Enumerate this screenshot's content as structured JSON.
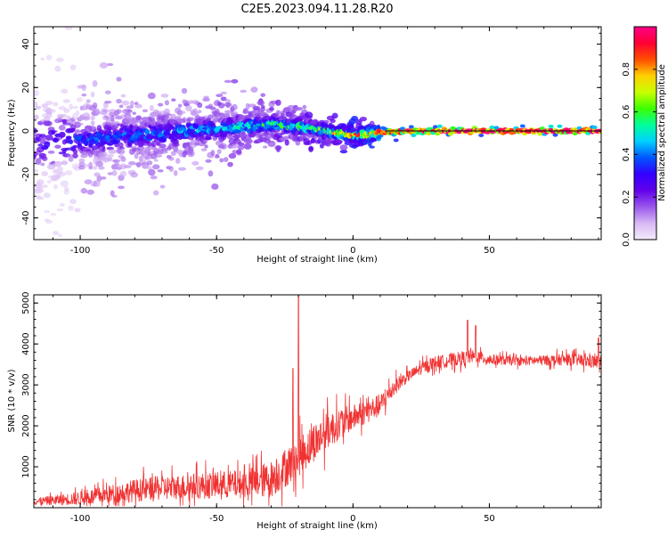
{
  "title": "C2E5.2023.094.11.28.R20",
  "chart_data": [
    {
      "type": "heatmap",
      "xlabel": "Height of straight line (km)",
      "ylabel": "Frequency (Hz)",
      "xlim": [
        -117,
        91
      ],
      "ylim": [
        -50,
        48
      ],
      "x_ticks": [
        -100,
        -50,
        0,
        50
      ],
      "y_ticks": [
        -40,
        -20,
        0,
        20,
        40
      ],
      "colorbar": {
        "label": "Normalized spectral amplitude",
        "range": [
          0.0,
          1.0
        ],
        "ticks": [
          0.0,
          0.2,
          0.4,
          0.6,
          0.8
        ],
        "tick_labels": [
          "0.0",
          "0.2",
          "0.4",
          "0.6",
          "0.8"
        ],
        "colormap": [
          "#f3ecfb",
          "#d8b8f5",
          "#9a57ea",
          "#6200ea",
          "#3300ff",
          "#0055ff",
          "#00d0ff",
          "#00ff9d",
          "#3cff00",
          "#c8ff00",
          "#ffd000",
          "#ff4e00",
          "#ff0033",
          "#ff0088"
        ]
      },
      "ridge": {
        "x": [
          -117,
          -110,
          -100,
          -90,
          -80,
          -70,
          -60,
          -50,
          -40,
          -30,
          -20,
          -10,
          0,
          10,
          20,
          40,
          60,
          80,
          91
        ],
        "center_hz": [
          -6,
          -5,
          -4,
          -3,
          -2,
          -1,
          0,
          1,
          2,
          3,
          2,
          0,
          -2,
          -1,
          0,
          0,
          0,
          0,
          0
        ],
        "spread_hz": [
          42,
          30,
          12,
          11,
          10,
          9,
          8,
          7,
          6,
          5,
          4,
          3,
          3,
          2,
          1.2,
          1,
          1,
          1,
          1
        ],
        "peak_amplitude": [
          0.22,
          0.24,
          0.3,
          0.32,
          0.34,
          0.36,
          0.38,
          0.4,
          0.45,
          0.5,
          0.55,
          0.65,
          0.75,
          0.85,
          0.9,
          0.95,
          0.95,
          0.95,
          0.95
        ]
      }
    },
    {
      "type": "line",
      "xlabel": "Height of straight line (km)",
      "ylabel": "SNR (10 * v/v)",
      "xlim": [
        -117,
        91
      ],
      "ylim": [
        0,
        5200
      ],
      "x_ticks": [
        -100,
        -50,
        0,
        50
      ],
      "y_ticks": [
        1000,
        2000,
        3000,
        4000,
        5000
      ],
      "color": "#f03232",
      "trend": {
        "x": [
          -117,
          -110,
          -100,
          -90,
          -80,
          -70,
          -60,
          -50,
          -40,
          -30,
          -25,
          -20,
          -15,
          -10,
          -5,
          0,
          5,
          10,
          15,
          20,
          25,
          30,
          35,
          40,
          45,
          50,
          60,
          70,
          80,
          91
        ],
        "y": [
          150,
          180,
          230,
          320,
          420,
          480,
          520,
          550,
          580,
          700,
          950,
          1250,
          1550,
          1850,
          2050,
          2200,
          2350,
          2500,
          2950,
          3200,
          3400,
          3550,
          3600,
          3650,
          3700,
          3620,
          3580,
          3600,
          3620,
          3550
        ]
      },
      "noise": {
        "x": [
          -117,
          -100,
          -80,
          -60,
          -40,
          -30,
          -20,
          -10,
          0,
          10,
          20,
          40,
          60,
          91
        ],
        "amplitude": [
          120,
          250,
          400,
          450,
          500,
          650,
          700,
          650,
          450,
          400,
          200,
          250,
          150,
          250
        ]
      },
      "spikes": [
        {
          "x": -20,
          "y": 5200
        },
        {
          "x": -22,
          "y": 3400
        },
        {
          "x": 42,
          "y": 4580
        },
        {
          "x": 45,
          "y": 4450
        },
        {
          "x": 90,
          "y": 4150
        }
      ]
    }
  ]
}
